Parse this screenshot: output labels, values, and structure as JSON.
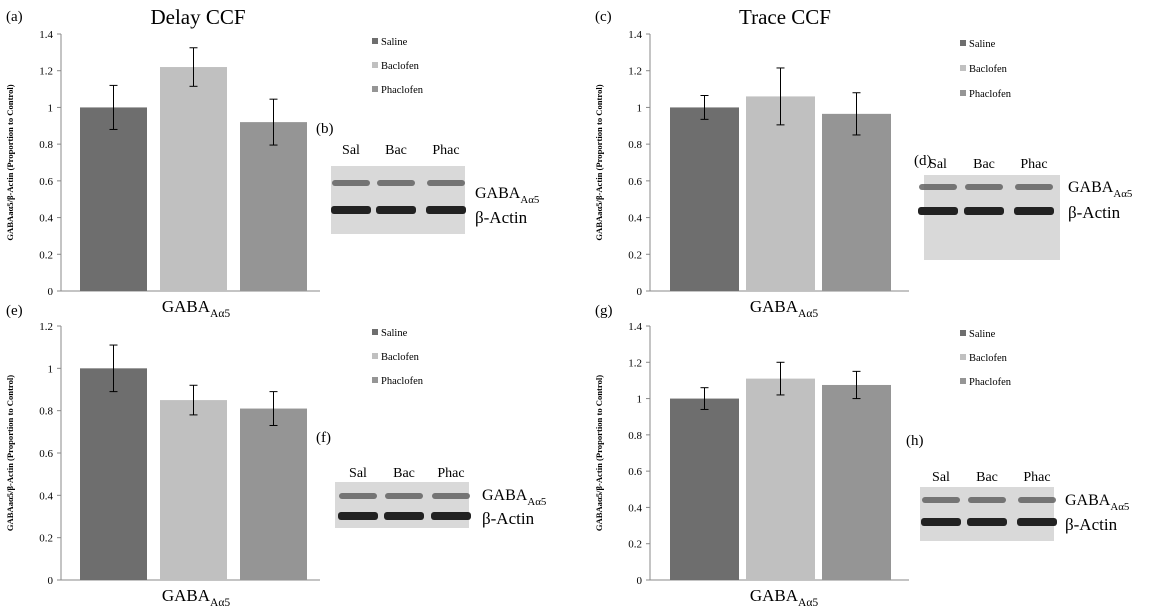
{
  "colors": {
    "saline": "#6e6e6e",
    "baclofen": "#c0c0c0",
    "phaclofen": "#959595",
    "axis": "#888888",
    "text": "#000000"
  },
  "blot_labels": {
    "lanes": [
      "Sal",
      "Bac",
      "Phac"
    ],
    "gaba_base": "GABA",
    "gaba_sub": "Aα5",
    "actin": "β-Actin"
  },
  "chart_data": [
    {
      "id": "a",
      "panel_label": "(a)",
      "title": "Delay CCF",
      "type": "bar",
      "ylabel": "GABAaα5/β-Actin (Proportion to Control)",
      "xlabel_base": "GABA",
      "xlabel_sub": "Aα5",
      "ylim": [
        0,
        1.4
      ],
      "yticks": [
        "0",
        "0.2",
        "0.4",
        "0.6",
        "0.8",
        "1",
        "1.2",
        "1.4"
      ],
      "series": [
        {
          "name": "Saline",
          "value": 1.0,
          "err": 0.12
        },
        {
          "name": "Baclofen",
          "value": 1.22,
          "err": 0.105
        },
        {
          "name": "Phaclofen",
          "value": 0.92,
          "err": 0.125
        }
      ],
      "legend_position": "top-right",
      "blot_label": "(b)"
    },
    {
      "id": "c",
      "panel_label": "(c)",
      "title": "Trace CCF",
      "type": "bar",
      "ylabel": "GABAaα5/β-Actin (Proportion to Control)",
      "xlabel_base": "GABA",
      "xlabel_sub": "Aα5",
      "ylim": [
        0,
        1.4
      ],
      "yticks": [
        "0",
        "0.2",
        "0.4",
        "0.6",
        "0.8",
        "1",
        "1.2",
        "1.4"
      ],
      "series": [
        {
          "name": "Saline",
          "value": 1.0,
          "err": 0.065
        },
        {
          "name": "Baclofen",
          "value": 1.06,
          "err": 0.155
        },
        {
          "name": "Phaclofen",
          "value": 0.965,
          "err": 0.115
        }
      ],
      "legend_position": "top-right",
      "blot_label": "(d)"
    },
    {
      "id": "e",
      "panel_label": "(e)",
      "title": "",
      "type": "bar",
      "ylabel": "GABAaα5/β-Actin (Proportion to Control)",
      "xlabel_base": "GABA",
      "xlabel_sub": "Aα5",
      "ylim": [
        0,
        1.2
      ],
      "yticks": [
        "0",
        "0.2",
        "0.4",
        "0.6",
        "0.8",
        "1",
        "1.2"
      ],
      "series": [
        {
          "name": "Saline",
          "value": 1.0,
          "err": 0.11
        },
        {
          "name": "Baclofen",
          "value": 0.85,
          "err": 0.07
        },
        {
          "name": "Phaclofen",
          "value": 0.81,
          "err": 0.08
        }
      ],
      "legend_position": "top-right",
      "blot_label": "(f)"
    },
    {
      "id": "g",
      "panel_label": "(g)",
      "title": "",
      "type": "bar",
      "ylabel": "GABAaα5/β-Actin (Proportion to Control)",
      "xlabel_base": "GABA",
      "xlabel_sub": "Aα5",
      "ylim": [
        0,
        1.4
      ],
      "yticks": [
        "0",
        "0.2",
        "0.4",
        "0.6",
        "0.8",
        "1",
        "1.2",
        "1.4"
      ],
      "series": [
        {
          "name": "Saline",
          "value": 1.0,
          "err": 0.06
        },
        {
          "name": "Baclofen",
          "value": 1.11,
          "err": 0.09
        },
        {
          "name": "Phaclofen",
          "value": 1.075,
          "err": 0.075
        }
      ],
      "legend_position": "top-right",
      "blot_label": "(h)"
    }
  ]
}
